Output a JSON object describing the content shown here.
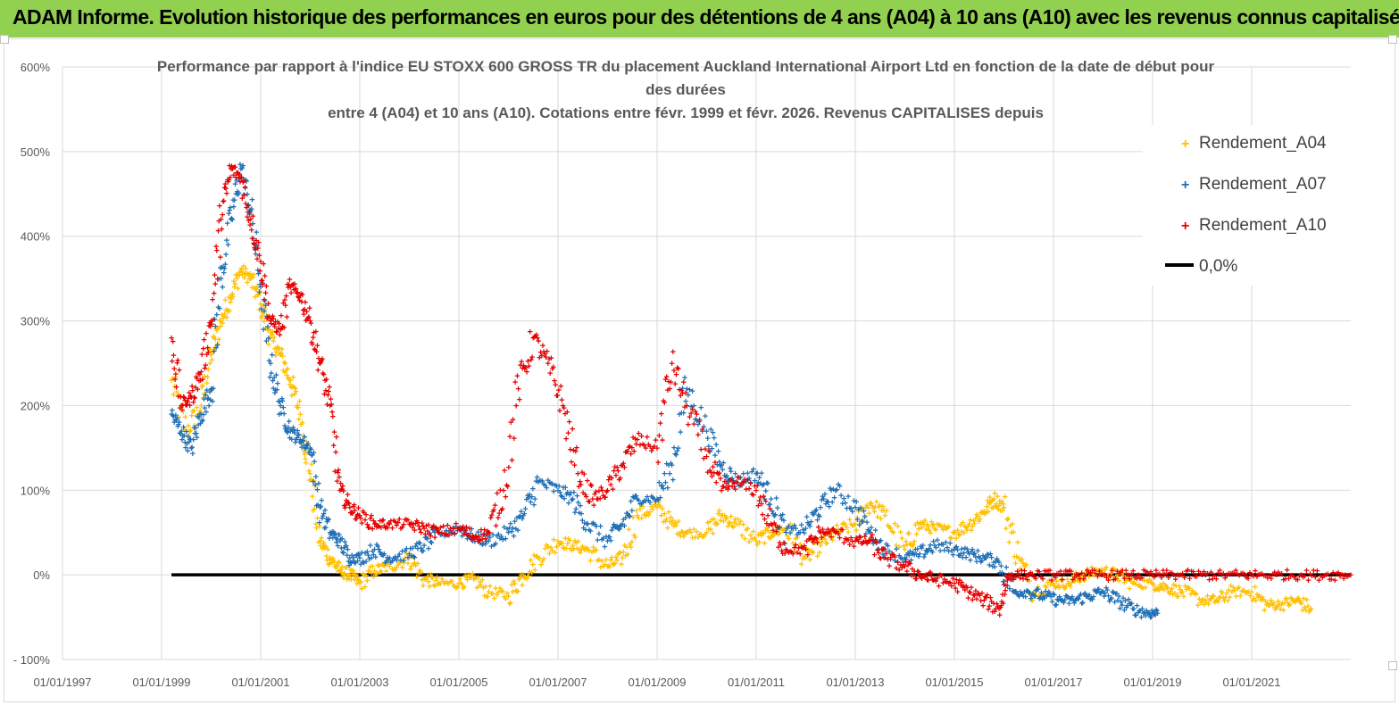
{
  "header": {
    "title": "ADAM Informe. Evolution historique des performances en euros pour des détentions de 4 ans (A04) à 10 ans (A10) avec les revenus connus capitalisés"
  },
  "chart_data": {
    "type": "scatter",
    "title_lines": [
      "Performance par rapport à l'indice EU STOXX 600 GROSS TR  du placement Auckland International Airport Ltd en fonction de la date de début pour",
      "des durées",
      "entre 4 (A04) et 10 ans (A10). Cotations entre févr. 1999 et févr. 2026. Revenus CAPITALISES depuis"
    ],
    "xlabel": "",
    "ylabel": "",
    "y_range": [
      -100,
      600
    ],
    "y_ticks": [
      -100,
      0,
      100,
      200,
      300,
      400,
      500,
      600
    ],
    "y_tick_labels": [
      "- 100%",
      "0%",
      "100%",
      "200%",
      "300%",
      "400%",
      "500%",
      "600%"
    ],
    "x_range": [
      1997.0,
      2023.0
    ],
    "x_ticks": [
      1997,
      1999,
      2001,
      2003,
      2005,
      2007,
      2009,
      2011,
      2013,
      2015,
      2017,
      2019,
      2021
    ],
    "x_tick_labels": [
      "01/01/1997",
      "01/01/1999",
      "01/01/2001",
      "01/01/2003",
      "01/01/2005",
      "01/01/2007",
      "01/01/2009",
      "01/01/2011",
      "01/01/2013",
      "01/01/2015",
      "01/01/2017",
      "01/01/2019",
      "01/01/2021"
    ],
    "grid": true,
    "legend_position": "top-right",
    "series": [
      {
        "name": "Rendement_A04",
        "color": "#ffc000",
        "marker": "plus",
        "x": [
          1999.2,
          1999.5,
          1999.8,
          2000.0,
          2000.2,
          2000.4,
          2000.6,
          2000.8,
          2001.0,
          2001.2,
          2001.4,
          2001.6,
          2001.8,
          2002.0,
          2002.2,
          2002.4,
          2002.6,
          2002.8,
          2003.0,
          2003.3,
          2003.6,
          2004.0,
          2004.3,
          2004.6,
          2005.0,
          2005.3,
          2005.6,
          2006.0,
          2006.3,
          2006.6,
          2007.0,
          2007.3,
          2007.6,
          2008.0,
          2008.3,
          2008.6,
          2009.0,
          2009.3,
          2009.6,
          2010.0,
          2010.3,
          2010.6,
          2011.0,
          2011.3,
          2011.6,
          2012.0,
          2012.3,
          2012.6,
          2013.0,
          2013.3,
          2013.6,
          2014.0,
          2014.3,
          2014.6,
          2015.0,
          2015.3,
          2015.6,
          2015.8,
          2016.0,
          2016.3,
          2016.6,
          2017.0,
          2017.3,
          2017.6,
          2018.0,
          2018.3,
          2018.6,
          2019.0,
          2019.3,
          2019.6,
          2020.0,
          2020.3,
          2020.6,
          2021.0,
          2021.3,
          2021.6,
          2021.9,
          2022.2
        ],
        "y": [
          230,
          170,
          200,
          260,
          300,
          330,
          360,
          350,
          320,
          280,
          260,
          230,
          190,
          120,
          40,
          20,
          5,
          0,
          -10,
          5,
          10,
          20,
          -5,
          -10,
          -10,
          -5,
          -20,
          -25,
          0,
          20,
          40,
          35,
          30,
          10,
          20,
          70,
          80,
          60,
          50,
          50,
          70,
          60,
          40,
          50,
          55,
          20,
          35,
          50,
          60,
          85,
          70,
          30,
          60,
          55,
          50,
          60,
          75,
          90,
          80,
          20,
          -20,
          -10,
          -10,
          0,
          5,
          0,
          -10,
          -10,
          -15,
          -20,
          -30,
          -30,
          -20,
          -20,
          -35,
          -35,
          -30,
          -40
        ]
      },
      {
        "name": "Rendement_A07",
        "color": "#1f6fb5",
        "marker": "plus",
        "x": [
          1999.2,
          1999.4,
          1999.6,
          1999.8,
          2000.0,
          2000.2,
          2000.4,
          2000.6,
          2000.8,
          2001.0,
          2001.2,
          2001.4,
          2001.6,
          2001.8,
          2002.0,
          2002.2,
          2002.4,
          2002.6,
          2002.8,
          2003.0,
          2003.3,
          2003.6,
          2004.0,
          2004.3,
          2004.6,
          2005.0,
          2005.3,
          2005.6,
          2006.0,
          2006.3,
          2006.6,
          2007.0,
          2007.3,
          2007.6,
          2008.0,
          2008.3,
          2008.6,
          2009.0,
          2009.3,
          2009.6,
          2010.0,
          2010.3,
          2010.6,
          2011.0,
          2011.3,
          2011.6,
          2012.0,
          2012.3,
          2012.6,
          2013.0,
          2013.3,
          2013.6,
          2014.0,
          2014.3,
          2014.6,
          2015.0,
          2015.3,
          2015.6,
          2015.9,
          2016.2,
          2016.5,
          2016.8,
          2017.1,
          2017.4,
          2017.7,
          2018.0,
          2018.3,
          2018.6,
          2018.9,
          2019.1
        ],
        "y": [
          190,
          170,
          150,
          190,
          220,
          350,
          420,
          480,
          430,
          340,
          250,
          200,
          170,
          160,
          150,
          80,
          50,
          40,
          20,
          20,
          30,
          20,
          25,
          35,
          50,
          55,
          45,
          40,
          50,
          70,
          110,
          100,
          90,
          60,
          40,
          60,
          90,
          90,
          130,
          220,
          170,
          130,
          110,
          120,
          90,
          50,
          55,
          80,
          100,
          80,
          50,
          30,
          20,
          25,
          35,
          30,
          25,
          20,
          15,
          -20,
          -20,
          -25,
          -30,
          -30,
          -25,
          -20,
          -30,
          -40,
          -45,
          -45
        ]
      },
      {
        "name": "Rendement_A10",
        "color": "#e50000",
        "marker": "plus",
        "x": [
          1999.2,
          1999.4,
          1999.6,
          1999.8,
          2000.0,
          2000.2,
          2000.4,
          2000.6,
          2000.8,
          2001.0,
          2001.2,
          2001.4,
          2001.6,
          2001.8,
          2002.0,
          2002.2,
          2002.4,
          2002.6,
          2002.8,
          2003.0,
          2003.3,
          2003.6,
          2004.0,
          2004.3,
          2004.6,
          2005.0,
          2005.3,
          2005.6,
          2005.9,
          2006.2,
          2006.5,
          2006.8,
          2007.1,
          2007.4,
          2007.7,
          2008.0,
          2008.3,
          2008.6,
          2009.0,
          2009.3,
          2009.6,
          2010.0,
          2010.3,
          2010.6,
          2011.0,
          2011.3,
          2011.6,
          2012.0,
          2012.3,
          2012.6,
          2013.0,
          2013.3,
          2013.6,
          2014.0,
          2014.3,
          2014.6,
          2015.0,
          2015.3,
          2015.6,
          2015.9,
          2016.1,
          2016.5,
          2017.0,
          2017.5,
          2018.0,
          2018.5,
          2019.0,
          2019.5,
          2020.0,
          2020.5,
          2021.0,
          2021.5,
          2022.0,
          2022.5,
          2023.0
        ],
        "y": [
          280,
          200,
          210,
          240,
          300,
          420,
          480,
          470,
          420,
          370,
          300,
          290,
          340,
          330,
          300,
          250,
          200,
          100,
          80,
          70,
          60,
          60,
          60,
          55,
          50,
          55,
          45,
          50,
          100,
          220,
          280,
          250,
          200,
          120,
          90,
          100,
          130,
          160,
          150,
          250,
          200,
          140,
          100,
          110,
          100,
          60,
          30,
          30,
          50,
          50,
          40,
          40,
          20,
          10,
          0,
          -5,
          -10,
          -20,
          -30,
          -40,
          0,
          0,
          0,
          0,
          0,
          0,
          0,
          0,
          0,
          0,
          0,
          0,
          0,
          0,
          0
        ]
      },
      {
        "name": "0,0%",
        "color": "#000000",
        "marker": "line",
        "x": [
          1999.2,
          2023.0
        ],
        "y": [
          0,
          0
        ]
      }
    ]
  }
}
